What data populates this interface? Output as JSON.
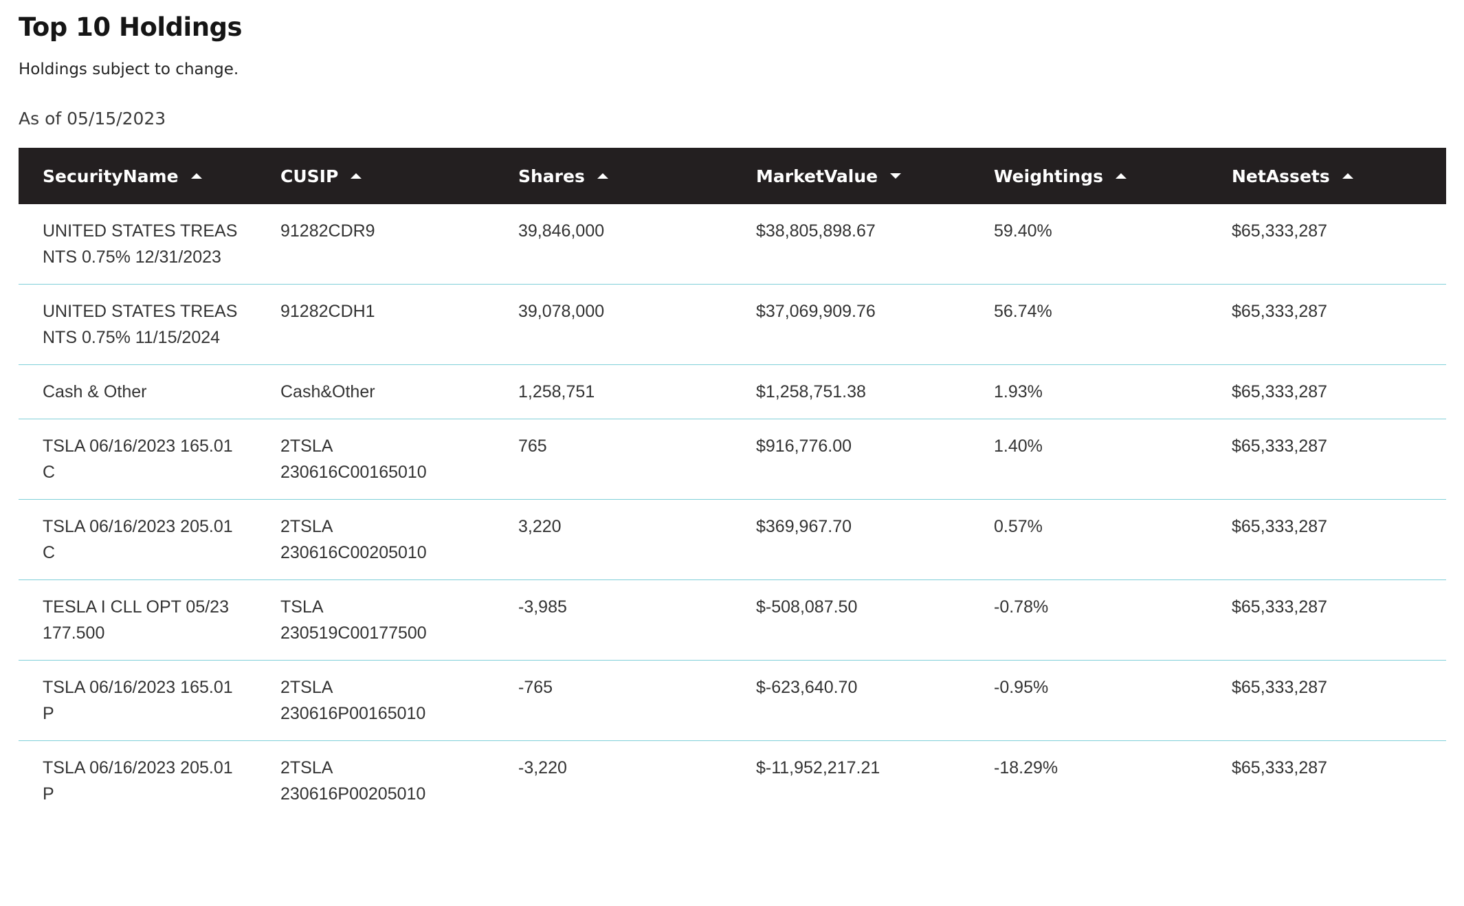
{
  "page": {
    "title": "Top 10 Holdings",
    "subtitle": "Holdings subject to change.",
    "as_of": "As of 05/15/2023"
  },
  "colors": {
    "header_bg": "#231f20",
    "header_text": "#ffffff",
    "row_divider": "#7fcfd8",
    "body_text": "#333333"
  },
  "table": {
    "columns": [
      {
        "label": "SecurityName",
        "sort": "asc",
        "icon": "sort-up-icon"
      },
      {
        "label": "CUSIP",
        "sort": "asc",
        "icon": "sort-up-icon"
      },
      {
        "label": "Shares",
        "sort": "asc",
        "icon": "sort-up-icon"
      },
      {
        "label": "MarketValue",
        "sort": "desc",
        "icon": "sort-down-icon"
      },
      {
        "label": "Weightings",
        "sort": "asc",
        "icon": "sort-up-icon"
      },
      {
        "label": "NetAssets",
        "sort": "asc",
        "icon": "sort-up-icon"
      }
    ],
    "rows": [
      {
        "name": "UNITED STATES TREAS NTS 0.75% 12/31/2023",
        "cusip": "91282CDR9",
        "shares": "39,846,000",
        "market_value": "$38,805,898.67",
        "weighting": "59.40%",
        "net_assets": "$65,333,287"
      },
      {
        "name": "UNITED STATES TREAS NTS 0.75% 11/15/2024",
        "cusip": "91282CDH1",
        "shares": "39,078,000",
        "market_value": "$37,069,909.76",
        "weighting": "56.74%",
        "net_assets": "$65,333,287"
      },
      {
        "name": "Cash & Other",
        "cusip": "Cash&Other",
        "shares": "1,258,751",
        "market_value": "$1,258,751.38",
        "weighting": "1.93%",
        "net_assets": "$65,333,287"
      },
      {
        "name": "TSLA 06/16/2023 165.01 C",
        "cusip": "2TSLA 230616C00165010",
        "shares": "765",
        "market_value": "$916,776.00",
        "weighting": "1.40%",
        "net_assets": "$65,333,287"
      },
      {
        "name": "TSLA 06/16/2023 205.01 C",
        "cusip": "2TSLA 230616C00205010",
        "shares": "3,220",
        "market_value": "$369,967.70",
        "weighting": "0.57%",
        "net_assets": "$65,333,287"
      },
      {
        "name": "TESLA I CLL OPT 05/23 177.500",
        "cusip": "TSLA 230519C00177500",
        "shares": "-3,985",
        "market_value": "$-508,087.50",
        "weighting": "-0.78%",
        "net_assets": "$65,333,287"
      },
      {
        "name": "TSLA 06/16/2023 165.01 P",
        "cusip": "2TSLA 230616P00165010",
        "shares": "-765",
        "market_value": "$-623,640.70",
        "weighting": "-0.95%",
        "net_assets": "$65,333,287"
      },
      {
        "name": "TSLA 06/16/2023 205.01 P",
        "cusip": "2TSLA 230616P00205010",
        "shares": "-3,220",
        "market_value": "$-11,952,217.21",
        "weighting": "-18.29%",
        "net_assets": "$65,333,287"
      }
    ]
  }
}
